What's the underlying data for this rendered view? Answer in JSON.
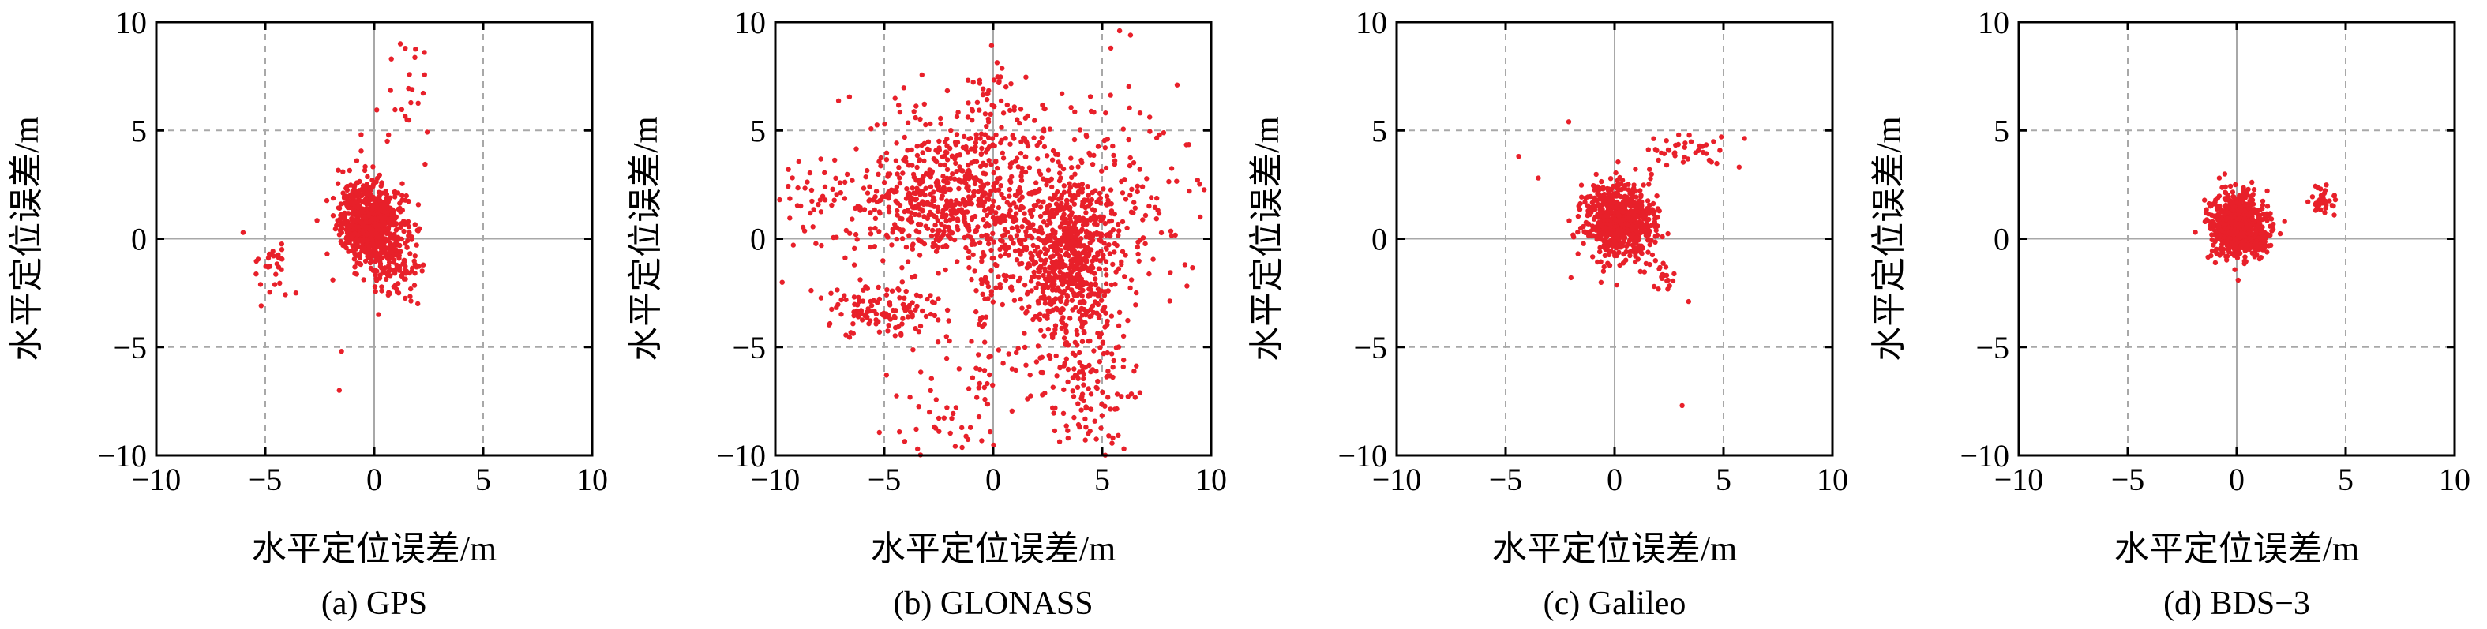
{
  "colors": {
    "points": "#e8202a",
    "grid": "#a8a8a8",
    "frame": "#000000"
  },
  "chart_data": [
    {
      "type": "scatter",
      "caption": "(a) GPS",
      "xlabel": "水平定位误差/m",
      "ylabel": "水平定位误差/m",
      "xlim": [
        -10,
        10
      ],
      "ylim": [
        -10,
        10
      ],
      "xticks": [
        -10,
        -5,
        0,
        5,
        10
      ],
      "yticks": [
        -10,
        -5,
        0,
        5,
        10
      ],
      "grid": true,
      "series": [
        {
          "clusters": [
            {
              "cx": 0.0,
              "cy": 0.5,
              "sx": 0.75,
              "sy": 0.95,
              "n": 620
            },
            {
              "cx": -0.6,
              "cy": 1.2,
              "sx": 0.6,
              "sy": 0.9,
              "n": 150
            },
            {
              "cx": 1.1,
              "cy": -1.7,
              "sx": 0.5,
              "sy": 0.6,
              "n": 60
            },
            {
              "cx": -4.6,
              "cy": -1.3,
              "sx": 0.45,
              "sy": 0.6,
              "n": 30
            },
            {
              "cx": 1.5,
              "cy": 6.2,
              "sx": 0.5,
              "sy": 1.6,
              "n": 22
            }
          ],
          "points": [
            [
              -1.5,
              -5.2
            ],
            [
              -1.6,
              -7.0
            ],
            [
              1.2,
              9.0
            ],
            [
              2.3,
              8.6
            ],
            [
              -0.6,
              4.8
            ],
            [
              0.6,
              4.5
            ],
            [
              -1.9,
              -1.9
            ],
            [
              2.0,
              -3.0
            ],
            [
              0.2,
              -3.5
            ],
            [
              -0.8,
              3.6
            ]
          ]
        }
      ]
    },
    {
      "type": "scatter",
      "caption": "(b) GLONASS",
      "xlabel": "水平定位误差/m",
      "ylabel": "水平定位误差/m",
      "xlim": [
        -10,
        10
      ],
      "ylim": [
        -10,
        10
      ],
      "xticks": [
        -10,
        -5,
        0,
        5,
        10
      ],
      "yticks": [
        -10,
        -5,
        0,
        5,
        10
      ],
      "grid": true,
      "series": [
        {
          "clusters": [
            {
              "cx": 3.2,
              "cy": -0.6,
              "sx": 1.3,
              "sy": 1.8,
              "n": 700
            },
            {
              "cx": -2.0,
              "cy": 1.5,
              "sx": 2.2,
              "sy": 1.4,
              "n": 520
            },
            {
              "cx": -1.0,
              "cy": 4.5,
              "sx": 2.5,
              "sy": 1.4,
              "n": 170
            },
            {
              "cx": -5.0,
              "cy": -3.3,
              "sx": 1.3,
              "sy": 0.6,
              "n": 130
            },
            {
              "cx": 4.0,
              "cy": -6.0,
              "sx": 1.2,
              "sy": 2.0,
              "n": 180
            },
            {
              "cx": 6.0,
              "cy": 2.5,
              "sx": 1.8,
              "sy": 2.5,
              "n": 110
            },
            {
              "cx": -8.0,
              "cy": 1.5,
              "sx": 1.2,
              "sy": 1.2,
              "n": 45
            },
            {
              "cx": -2.0,
              "cy": -7.5,
              "sx": 1.3,
              "sy": 1.5,
              "n": 55
            },
            {
              "cx": -0.3,
              "cy": -3.0,
              "sx": 0.3,
              "sy": 3.5,
              "n": 45
            },
            {
              "cx": 0.0,
              "cy": 7.2,
              "sx": 0.6,
              "sy": 0.6,
              "n": 18
            }
          ],
          "points": [
            [
              5.8,
              9.6
            ],
            [
              5.4,
              8.8
            ],
            [
              6.3,
              9.4
            ],
            [
              -9.4,
              3.2
            ],
            [
              -9.8,
              1.8
            ],
            [
              9.5,
              1.0
            ],
            [
              8.8,
              -1.2
            ],
            [
              9.0,
              2.2
            ],
            [
              6.0,
              -9.7
            ],
            [
              5.3,
              -9.1
            ],
            [
              -4.9,
              -6.3
            ]
          ]
        }
      ]
    },
    {
      "type": "scatter",
      "caption": "(c) Galileo",
      "xlabel": "水平定位误差/m",
      "ylabel": "水平定位误差/m",
      "xlim": [
        -10,
        10
      ],
      "ylim": [
        -10,
        10
      ],
      "xticks": [
        -10,
        -5,
        0,
        5,
        10
      ],
      "yticks": [
        -10,
        -5,
        0,
        5,
        10
      ],
      "grid": true,
      "series": [
        {
          "clusters": [
            {
              "cx": 0.2,
              "cy": 0.8,
              "sx": 0.8,
              "sy": 0.85,
              "n": 700
            },
            {
              "cx": 3.5,
              "cy": 4.0,
              "sx": 1.1,
              "sy": 0.45,
              "n": 40
            },
            {
              "cx": 2.4,
              "cy": -1.8,
              "sx": 0.5,
              "sy": 0.5,
              "n": 22
            }
          ],
          "points": [
            [
              -2.1,
              5.4
            ],
            [
              -4.4,
              3.8
            ],
            [
              -3.5,
              2.8
            ],
            [
              4.9,
              4.7
            ],
            [
              3.1,
              -7.7
            ],
            [
              3.4,
              -2.9
            ],
            [
              -2.0,
              -1.8
            ],
            [
              1.6,
              3.2
            ]
          ]
        }
      ]
    },
    {
      "type": "scatter",
      "caption": "(d) BDS-3",
      "xlabel": "水平定位误差/m",
      "ylabel": "水平定位误差/m",
      "xlim": [
        -10,
        10
      ],
      "ylim": [
        -10,
        10
      ],
      "xticks": [
        -10,
        -5,
        0,
        5,
        10
      ],
      "yticks": [
        -10,
        -5,
        0,
        5,
        10
      ],
      "grid": true,
      "series": [
        {
          "clusters": [
            {
              "cx": 0.0,
              "cy": 0.6,
              "sx": 0.6,
              "sy": 0.75,
              "n": 650
            },
            {
              "cx": 0.6,
              "cy": 0.0,
              "sx": 0.5,
              "sy": 0.35,
              "n": 120
            },
            {
              "cx": 4.0,
              "cy": 1.7,
              "sx": 0.35,
              "sy": 0.35,
              "n": 35
            }
          ],
          "points": [
            [
              -1.9,
              0.3
            ],
            [
              -0.8,
              2.8
            ],
            [
              2.2,
              0.8
            ]
          ]
        }
      ]
    }
  ]
}
